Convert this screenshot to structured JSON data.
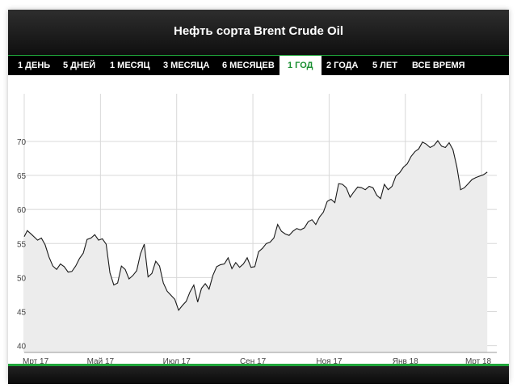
{
  "title": "Нефть сорта Brent Crude Oil",
  "tabs": [
    {
      "label": "1 ДЕНЬ",
      "active": false
    },
    {
      "label": "5 ДНЕЙ",
      "active": false
    },
    {
      "label": "1 МЕСЯЦ",
      "active": false
    },
    {
      "label": "3 МЕСЯЦА",
      "active": false
    },
    {
      "label": "6 МЕСЯЦЕВ",
      "active": false
    },
    {
      "label": "1 ГОД",
      "active": true
    },
    {
      "label": "2 ГОДА",
      "active": false
    },
    {
      "label": "5 ЛЕТ",
      "active": false
    },
    {
      "label": "ВСЕ ВРЕМЯ",
      "active": false
    }
  ],
  "colors": {
    "accent": "#1fa53a",
    "line": "#1a1a1a",
    "fill": "#ececec",
    "grid": "#d8d8d8"
  },
  "chart_data": {
    "type": "area",
    "title": "Нефть сорта Brent Crude Oil",
    "xlabel": "",
    "ylabel": "",
    "xlim": [
      0,
      12.4
    ],
    "ylim": [
      39,
      77
    ],
    "yticks": [
      40,
      45,
      50,
      55,
      60,
      65,
      70
    ],
    "xticks": [
      {
        "pos": 0,
        "label": "Мрт 17"
      },
      {
        "pos": 2,
        "label": "Май 17"
      },
      {
        "pos": 4,
        "label": "Июл 17"
      },
      {
        "pos": 6,
        "label": "Сен 17"
      },
      {
        "pos": 8,
        "label": "Ноя 17"
      },
      {
        "pos": 10,
        "label": "Янв 18"
      },
      {
        "pos": 12,
        "label": "Мрт 18"
      }
    ],
    "grid": true,
    "series": [
      {
        "x": [
          0,
          0.08,
          0.2,
          0.35,
          0.45,
          0.55,
          0.65,
          0.75,
          0.85,
          0.95,
          1.05,
          1.15,
          1.25,
          1.35,
          1.45,
          1.55,
          1.65,
          1.75,
          1.85,
          1.95,
          2.05,
          2.15,
          2.25,
          2.35,
          2.45,
          2.55,
          2.65,
          2.75,
          2.85,
          2.95,
          3.05,
          3.15,
          3.25,
          3.35,
          3.45,
          3.55,
          3.65,
          3.75,
          3.85,
          3.95,
          4.05,
          4.15,
          4.25,
          4.35,
          4.45,
          4.55,
          4.65,
          4.75,
          4.85,
          4.95,
          5.05,
          5.15,
          5.25,
          5.35,
          5.45,
          5.55,
          5.65,
          5.75,
          5.85,
          5.95,
          6.05,
          6.15,
          6.25,
          6.35,
          6.45,
          6.55,
          6.65,
          6.75,
          6.85,
          6.95,
          7.05,
          7.15,
          7.25,
          7.35,
          7.45,
          7.55,
          7.65,
          7.75,
          7.85,
          7.95,
          8.05,
          8.15,
          8.25,
          8.35,
          8.45,
          8.55,
          8.65,
          8.75,
          8.85,
          8.95,
          9.05,
          9.15,
          9.25,
          9.35,
          9.45,
          9.55,
          9.65,
          9.75,
          9.85,
          9.95,
          10.05,
          10.15,
          10.25,
          10.35,
          10.45,
          10.55,
          10.65,
          10.75,
          10.85,
          10.95,
          11.05,
          11.15,
          11.25,
          11.35,
          11.45,
          11.55,
          11.65,
          11.75,
          11.85,
          11.95,
          12.05,
          12.15
        ],
        "values": [
          56.0,
          56.9,
          56.3,
          55.5,
          55.8,
          54.8,
          53.0,
          51.7,
          51.2,
          52.0,
          51.6,
          50.8,
          50.9,
          51.7,
          52.8,
          53.6,
          55.6,
          55.8,
          56.3,
          55.5,
          55.7,
          54.9,
          50.7,
          48.9,
          49.2,
          51.7,
          51.2,
          49.8,
          50.3,
          51.0,
          53.5,
          54.9,
          50.1,
          50.6,
          52.4,
          51.7,
          49.2,
          48.0,
          47.4,
          46.8,
          45.2,
          45.9,
          46.5,
          47.9,
          48.9,
          46.4,
          48.4,
          49.1,
          48.3,
          50.3,
          51.6,
          51.9,
          52.0,
          52.9,
          51.3,
          52.2,
          51.5,
          52.0,
          52.9,
          51.5,
          51.6,
          53.8,
          54.3,
          55.0,
          55.2,
          55.8,
          57.8,
          56.8,
          56.4,
          56.2,
          56.8,
          57.2,
          57.0,
          57.3,
          58.2,
          58.5,
          57.8,
          58.9,
          59.6,
          61.2,
          61.5,
          61.0,
          63.8,
          63.7,
          63.2,
          61.8,
          62.6,
          63.3,
          63.2,
          62.9,
          63.4,
          63.2,
          62.1,
          61.6,
          63.7,
          62.9,
          63.4,
          64.9,
          65.4,
          66.2,
          66.7,
          67.8,
          68.5,
          68.9,
          69.9,
          69.6,
          69.1,
          69.4,
          70.1,
          69.3,
          69.1,
          69.8,
          68.8,
          66.3,
          62.9,
          63.2,
          63.8,
          64.4,
          64.7,
          64.9,
          65.1,
          65.5
        ],
        "note": ""
      }
    ]
  }
}
